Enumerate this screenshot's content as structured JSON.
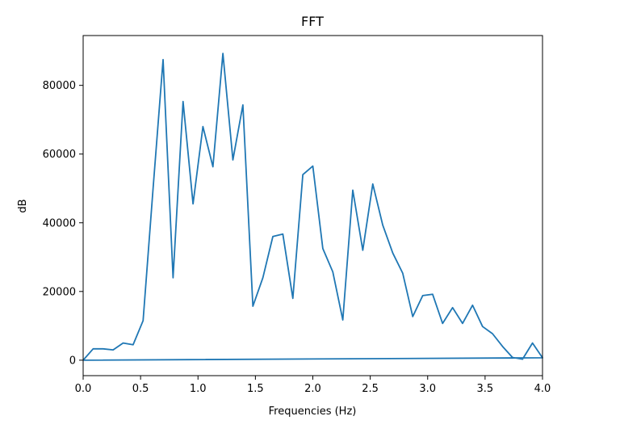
{
  "chart_data": {
    "type": "line",
    "title": "FFT",
    "xlabel": "Frequencies (Hz)",
    "ylabel": "dB",
    "xlim": [
      0.0,
      4.0
    ],
    "ylim": [
      -4500,
      94500
    ],
    "x_ticks": [
      0.0,
      0.5,
      1.0,
      1.5,
      2.0,
      2.5,
      3.0,
      3.5,
      4.0
    ],
    "x_tick_labels": [
      "0.0",
      "0.5",
      "1.0",
      "1.5",
      "2.0",
      "2.5",
      "3.0",
      "3.5",
      "4.0"
    ],
    "y_ticks": [
      0,
      20000,
      40000,
      60000,
      80000
    ],
    "y_tick_labels": [
      "0",
      "20000",
      "40000",
      "60000",
      "80000"
    ],
    "grid": false,
    "line_color": "#1f77b4",
    "series": [
      {
        "x": [
          0.0,
          0.087,
          0.174,
          0.261,
          0.348,
          0.435,
          0.522,
          0.609,
          0.696,
          0.783,
          0.87,
          0.957,
          1.043,
          1.13,
          1.217,
          1.304,
          1.391,
          1.478,
          1.565,
          1.652,
          1.739,
          1.826,
          1.913,
          2.0,
          2.087,
          2.174,
          2.261,
          2.348,
          2.435,
          2.522,
          2.609,
          2.696,
          2.783,
          2.87,
          2.957,
          3.043,
          3.13,
          3.217,
          3.304,
          3.391,
          3.478,
          3.565,
          3.652,
          3.739,
          3.826,
          3.913,
          4.0,
          0.0
        ],
        "values": [
          0,
          3300,
          3300,
          3000,
          5000,
          4500,
          11500,
          50000,
          87500,
          24000,
          75300,
          45500,
          68000,
          56300,
          89300,
          58300,
          74300,
          15700,
          24000,
          36000,
          36700,
          18000,
          54000,
          56500,
          32500,
          25700,
          11700,
          49500,
          32000,
          51300,
          39300,
          31200,
          25300,
          12700,
          18800,
          19200,
          10700,
          15300,
          10700,
          16000,
          9800,
          7700,
          4000,
          800,
          300,
          5000,
          700,
          0
        ]
      }
    ]
  }
}
